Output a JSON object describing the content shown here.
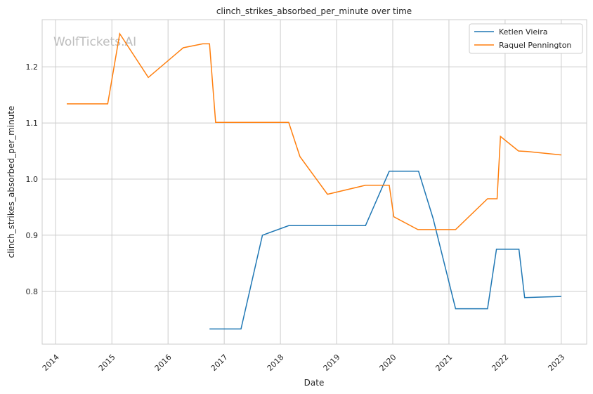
{
  "chart_data": {
    "type": "line",
    "title": "clinch_strikes_absorbed_per_minute over time",
    "xlabel": "Date",
    "ylabel": "clinch_strikes_absorbed_per_minute",
    "watermark": "WolfTickets.AI",
    "x_ticks": [
      "2014",
      "2015",
      "2016",
      "2017",
      "2018",
      "2019",
      "2020",
      "2021",
      "2022",
      "2023"
    ],
    "y_ticks": [
      "0.8",
      "0.9",
      "1.0",
      "1.1",
      "1.2"
    ],
    "xlim": [
      "2013-10-05",
      "2023-06-15"
    ],
    "ylim": [
      0.706,
      1.284
    ],
    "grid": true,
    "legend_position": "top-right",
    "series": [
      {
        "name": "Ketlen Vieira",
        "color": "#1f77b4",
        "points": [
          [
            "2016-09-27",
            0.733
          ],
          [
            "2017-04-20",
            0.733
          ],
          [
            "2017-09-06",
            0.9
          ],
          [
            "2018-02-24",
            0.917
          ],
          [
            "2019-07-08",
            0.917
          ],
          [
            "2019-12-09",
            1.014
          ],
          [
            "2020-06-17",
            1.014
          ],
          [
            "2020-09-20",
            0.93
          ],
          [
            "2021-02-13",
            0.769
          ],
          [
            "2021-09-09",
            0.769
          ],
          [
            "2021-11-06",
            0.875
          ],
          [
            "2022-04-01",
            0.875
          ],
          [
            "2022-05-08",
            0.789
          ],
          [
            "2023-01-01",
            0.791
          ]
        ]
      },
      {
        "name": "Raquel Pennington",
        "color": "#ff7f0e",
        "points": [
          [
            "2014-03-14",
            1.134
          ],
          [
            "2014-12-05",
            1.134
          ],
          [
            "2015-02-21",
            1.259
          ],
          [
            "2015-08-26",
            1.181
          ],
          [
            "2016-04-09",
            1.234
          ],
          [
            "2016-08-14",
            1.241
          ],
          [
            "2016-09-27",
            1.241
          ],
          [
            "2016-11-06",
            1.101
          ],
          [
            "2018-02-24",
            1.101
          ],
          [
            "2018-05-08",
            1.04
          ],
          [
            "2018-11-03",
            0.973
          ],
          [
            "2019-07-08",
            0.989
          ],
          [
            "2019-12-09",
            0.989
          ],
          [
            "2020-01-08",
            0.933
          ],
          [
            "2020-06-13",
            0.91
          ],
          [
            "2021-02-13",
            0.91
          ],
          [
            "2021-09-09",
            0.965
          ],
          [
            "2021-11-10",
            0.965
          ],
          [
            "2021-12-02",
            1.076
          ],
          [
            "2022-03-29",
            1.05
          ],
          [
            "2022-05-27",
            1.049
          ],
          [
            "2023-01-01",
            1.043
          ]
        ]
      }
    ]
  }
}
